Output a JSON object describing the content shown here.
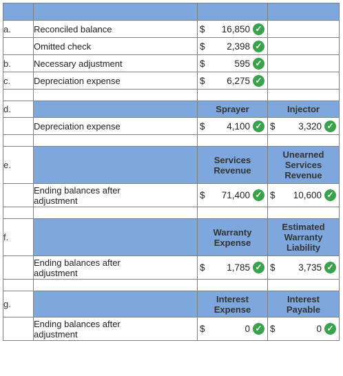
{
  "a": {
    "letter": "a.",
    "desc": "Reconciled balance",
    "cur": "$",
    "amount": "16,850"
  },
  "omitted": {
    "desc": "Omitted check",
    "cur": "$",
    "amount": "2,398"
  },
  "b": {
    "letter": "b.",
    "desc": "Necessary adjustment",
    "cur": "$",
    "amount": "595"
  },
  "c": {
    "letter": "c.",
    "desc": "Depreciation expense",
    "cur": "$",
    "amount": "6,275"
  },
  "d": {
    "letter": "d.",
    "col1": "Sprayer",
    "col2": "Injector",
    "desc": "Depreciation expense",
    "cur1": "$",
    "amt1": "4,100",
    "cur2": "$",
    "amt2": "3,320"
  },
  "e": {
    "letter": "e.",
    "col1": "Services\nRevenue",
    "col2": "Unearned\nServices\nRevenue",
    "desc": "Ending balances after\nadjustment",
    "cur1": "$",
    "amt1": "71,400",
    "cur2": "$",
    "amt2": "10,600"
  },
  "f": {
    "letter": "f.",
    "col1": "Warranty\nExpense",
    "col2": "Estimated\nWarranty\nLiability",
    "desc": "Ending balances after\nadjustment",
    "cur1": "$",
    "amt1": "1,785",
    "cur2": "$",
    "amt2": "3,735"
  },
  "g": {
    "letter": "g.",
    "col1": "Interest\nExpense",
    "col2": "Interest\nPayable",
    "desc": "Ending balances after\nadjustment",
    "cur1": "$",
    "amt1": "0",
    "cur2": "$",
    "amt2": "0"
  },
  "check_symbol": "✓",
  "colors": {
    "header": "#7da7dd",
    "check": "#3aa14d"
  }
}
